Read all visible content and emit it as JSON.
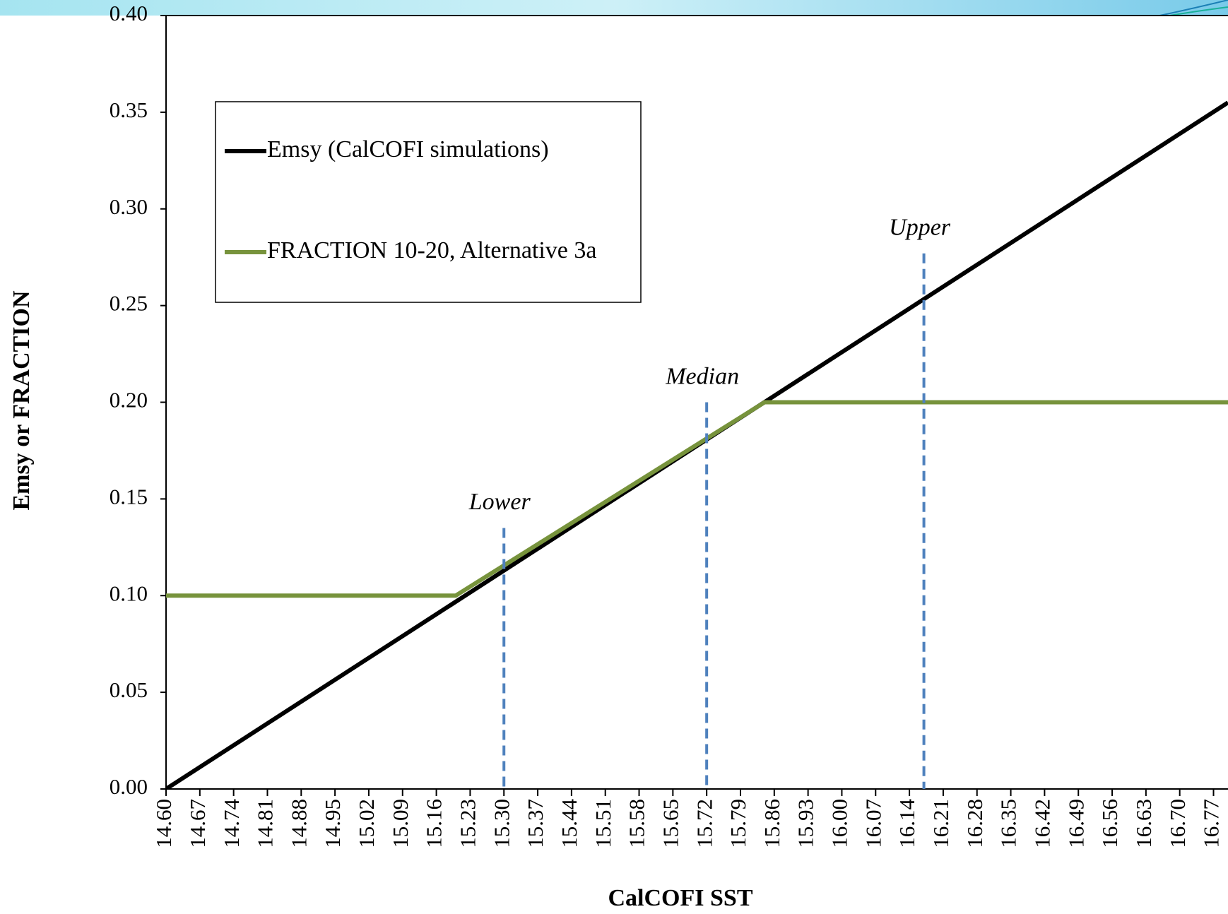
{
  "chart_data": {
    "type": "line",
    "xlabel": "CalCOFI SST",
    "ylabel": "Emsy or FRACTION",
    "xlim": [
      14.6,
      16.8
    ],
    "ylim": [
      0,
      0.4
    ],
    "xticks": [
      {
        "value": 14.6,
        "label": "14.60"
      },
      14.67,
      14.74,
      14.81,
      14.88,
      14.95,
      15.02,
      15.09,
      15.16,
      15.23,
      {
        "value": 15.3,
        "label": "15.30"
      },
      15.37,
      15.44,
      15.51,
      15.58,
      15.65,
      15.72,
      15.79,
      15.86,
      15.93,
      {
        "value": 16,
        "label": "16.00"
      },
      16.07,
      16.14,
      16.21,
      16.28,
      16.35,
      16.42,
      16.49,
      16.56,
      16.63,
      {
        "value": 16.7,
        "label": "16.70"
      },
      16.77
    ],
    "yticks": [
      {
        "value": 0,
        "label": "0.00"
      },
      0.05,
      {
        "value": 0.1,
        "label": "0.10"
      },
      0.15,
      {
        "value": 0.2,
        "label": "0.20"
      },
      0.25,
      {
        "value": 0.3,
        "label": "0.30"
      },
      0.35,
      {
        "value": 0.4,
        "label": "0.40"
      }
    ],
    "legend": "upper left",
    "series": [
      {
        "name": "Emsy (CalCOFI simulations)",
        "color": "#000000",
        "x": [
          14.6,
          16.8
        ],
        "values": [
          0.0,
          0.355
        ]
      },
      {
        "name": "FRACTION 10-20, Alternative 3a",
        "color": "#77933c",
        "x": [
          14.6,
          15.2,
          15.84,
          16.8
        ],
        "values": [
          0.1,
          0.1,
          0.2,
          0.2
        ]
      }
    ],
    "annotations": [
      {
        "text": "Lower",
        "x": 15.3,
        "y": 0.135
      },
      {
        "text": "Median",
        "x": 15.72,
        "y": 0.2
      },
      {
        "text": "Upper",
        "x": 16.17,
        "y": 0.277
      }
    ]
  }
}
